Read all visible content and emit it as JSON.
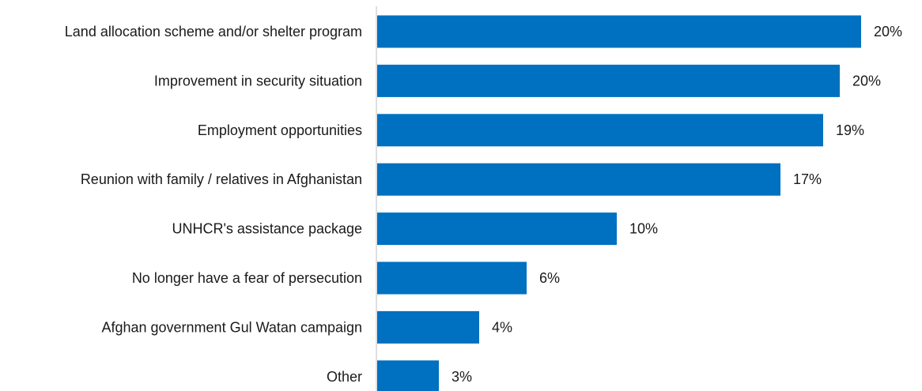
{
  "chart_data": {
    "type": "bar",
    "orientation": "horizontal",
    "categories": [
      "Land allocation scheme and/or shelter program",
      "Improvement in security situation",
      "Employment opportunities",
      "Reunion with family / relatives in Afghanistan",
      "UNHCR's assistance package",
      "No longer have a fear of persecution",
      "Afghan government Gul Watan campaign",
      "Other"
    ],
    "values": [
      20.4,
      19.5,
      18.8,
      17.0,
      10.1,
      6.3,
      4.3,
      2.6
    ],
    "value_labels": [
      "20%",
      "20%",
      "19%",
      "17%",
      "10%",
      "6%",
      "4%",
      "3%"
    ],
    "bar_color": "#0070C0",
    "title": "",
    "xlabel": "",
    "ylabel": "",
    "xlim": [
      0,
      21
    ],
    "grid": false,
    "legend": "none"
  }
}
